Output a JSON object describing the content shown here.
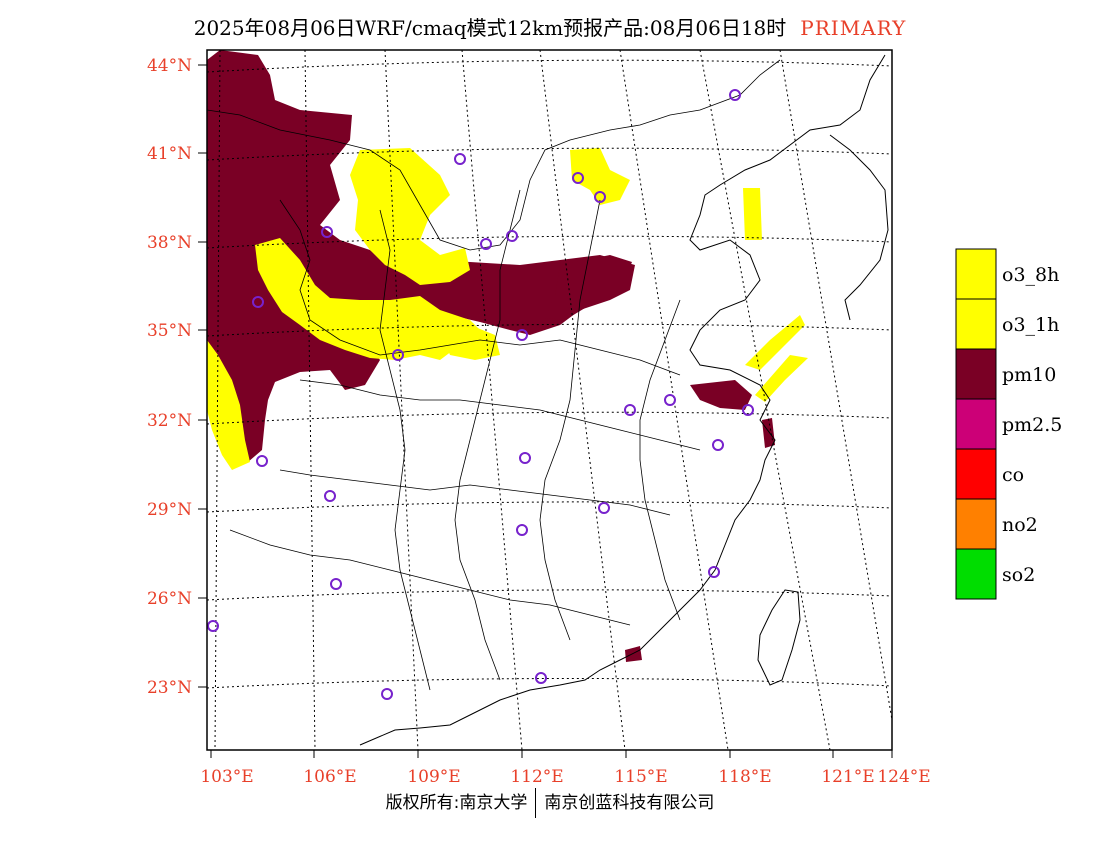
{
  "title": {
    "text": "2025年08月06日WRF/cmaq模式12km预报产品:08月06日18时",
    "tag": "PRIMARY"
  },
  "axes": {
    "lat_labels": [
      "44°N",
      "41°N",
      "38°N",
      "35°N",
      "32°N",
      "29°N",
      "26°N",
      "23°N"
    ],
    "lon_labels": [
      "103°E",
      "106°E",
      "109°E",
      "112°E",
      "115°E",
      "118°E",
      "121°E",
      "124°E"
    ],
    "label_color": "#e8402a"
  },
  "legend": {
    "items": [
      {
        "label": "o3_8h",
        "color": "#ffff00"
      },
      {
        "label": "o3_1h",
        "color": "#ffff00"
      },
      {
        "label": "pm10",
        "color": "#7a0025"
      },
      {
        "label": "pm2.5",
        "color": "#cc0077"
      },
      {
        "label": "co",
        "color": "#ff0000"
      },
      {
        "label": "no2",
        "color": "#ff8000"
      },
      {
        "label": "so2",
        "color": "#00dd00"
      }
    ]
  },
  "colors": {
    "pm10": "#7a0025",
    "o3": "#ffff00",
    "pm25": "#cc0077",
    "station": "#7722cc"
  },
  "footer": {
    "left": "版权所有:南京大学",
    "right": "南京创蓝科技有限公司"
  }
}
